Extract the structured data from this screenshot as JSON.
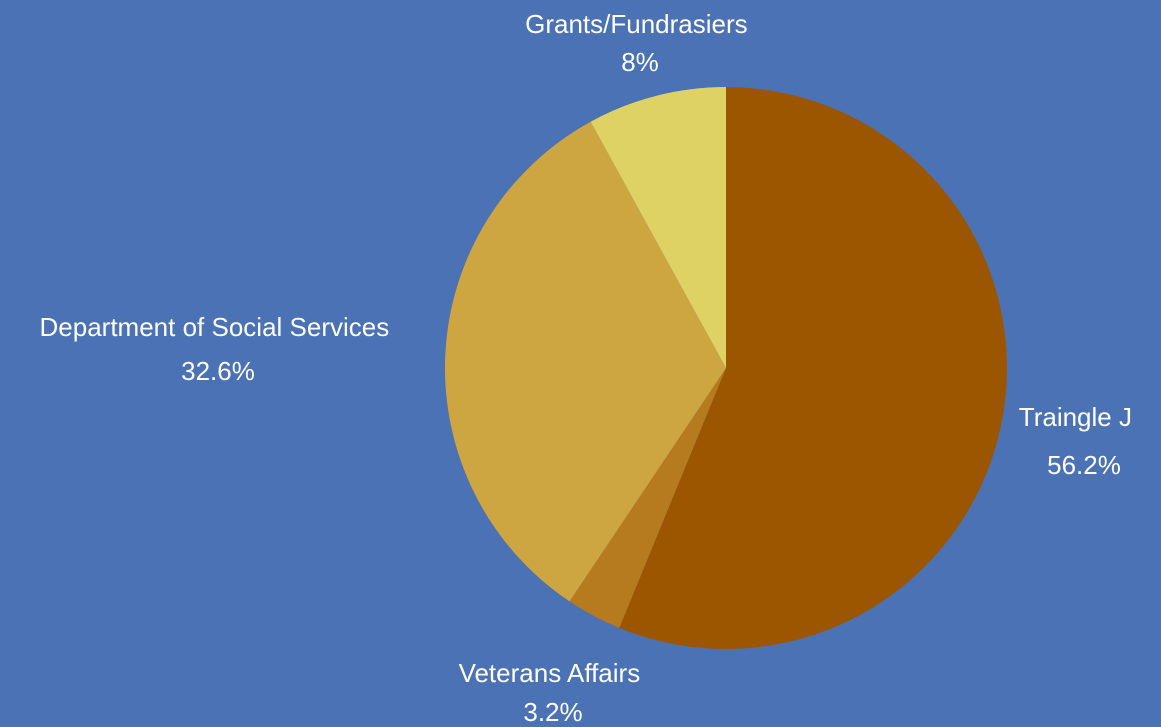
{
  "chart_data": {
    "type": "pie",
    "title": "",
    "start_angle_deg": 0,
    "direction": "clockwise",
    "background_color": "#4a72b5",
    "slices": [
      {
        "label": "Traingle J",
        "value": 56.2,
        "value_label": "56.2%",
        "color": "#9d5600"
      },
      {
        "label": "Veterans Affairs",
        "value": 3.2,
        "value_label": "3.2%",
        "color": "#b67b1f"
      },
      {
        "label": "Department of Social Services",
        "value": 32.6,
        "value_label": "32.6%",
        "color": "#cda641"
      },
      {
        "label": "Grants/Fundrasiers",
        "value": 8,
        "value_label": "8%",
        "color": "#dfd264"
      }
    ]
  }
}
